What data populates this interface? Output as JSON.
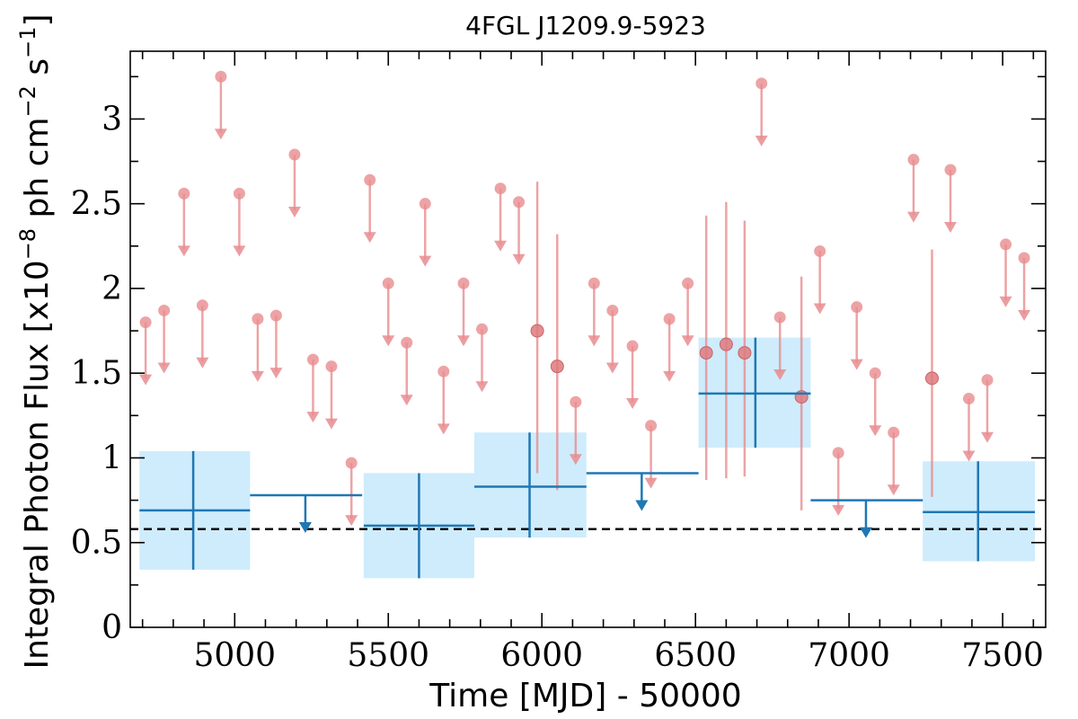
{
  "chart_data": {
    "type": "scatter",
    "title": "4FGL J1209.9-5923",
    "xlabel": "Time [MJD] - 50000",
    "ylabel_main": "Integral Photon Flux [x10",
    "ylabel_exp1": "−8",
    "ylabel_mid": " ph cm",
    "ylabel_exp2": "−2",
    "ylabel_mid2": " s",
    "ylabel_exp3": "−1",
    "ylabel_end": "]",
    "xlim": [
      4660,
      7640
    ],
    "ylim": [
      0,
      3.4
    ],
    "x_ticks": [
      5000,
      5500,
      6000,
      6500,
      7000,
      7500
    ],
    "x_tick_labels": [
      "5000",
      "5500",
      "6000",
      "6500",
      "7000",
      "7500"
    ],
    "x_minor_step": 100,
    "y_ticks": [
      0,
      0.5,
      1,
      1.5,
      2,
      2.5,
      3
    ],
    "y_tick_labels": [
      "0",
      "0.5",
      "1",
      "1.5",
      "2",
      "2.5",
      "3"
    ],
    "y_minor_step": 0.25,
    "baseline": {
      "value": 0.58,
      "style": "dashed",
      "color": "#000000"
    },
    "colors": {
      "fine": "#e88c8f",
      "coarse": "#1f77b4",
      "coarse_band": "#a6dcfa"
    },
    "series": [
      {
        "bins": "fine-upper-limits",
        "points": [
          {
            "x": 4710,
            "y": 1.8
          },
          {
            "x": 4770,
            "y": 1.87
          },
          {
            "x": 4835,
            "y": 2.56
          },
          {
            "x": 4895,
            "y": 1.9
          },
          {
            "x": 4955,
            "y": 3.25
          },
          {
            "x": 5015,
            "y": 2.56
          },
          {
            "x": 5075,
            "y": 1.82
          },
          {
            "x": 5135,
            "y": 1.84
          },
          {
            "x": 5195,
            "y": 2.79
          },
          {
            "x": 5255,
            "y": 1.58
          },
          {
            "x": 5315,
            "y": 1.54
          },
          {
            "x": 5380,
            "y": 0.97
          },
          {
            "x": 5440,
            "y": 2.64
          },
          {
            "x": 5500,
            "y": 2.03
          },
          {
            "x": 5560,
            "y": 1.68
          },
          {
            "x": 5620,
            "y": 2.5
          },
          {
            "x": 5680,
            "y": 1.51
          },
          {
            "x": 5745,
            "y": 2.03
          },
          {
            "x": 5805,
            "y": 1.76
          },
          {
            "x": 5865,
            "y": 2.59
          },
          {
            "x": 5925,
            "y": 2.51
          },
          {
            "x": 6110,
            "y": 1.33
          },
          {
            "x": 6170,
            "y": 2.03
          },
          {
            "x": 6230,
            "y": 1.87
          },
          {
            "x": 6295,
            "y": 1.66
          },
          {
            "x": 6355,
            "y": 1.19
          },
          {
            "x": 6415,
            "y": 1.82
          },
          {
            "x": 6475,
            "y": 2.03
          },
          {
            "x": 6715,
            "y": 3.21
          },
          {
            "x": 6775,
            "y": 1.83
          },
          {
            "x": 6905,
            "y": 2.22
          },
          {
            "x": 6965,
            "y": 1.03
          },
          {
            "x": 7025,
            "y": 1.89
          },
          {
            "x": 7085,
            "y": 1.5
          },
          {
            "x": 7145,
            "y": 1.15
          },
          {
            "x": 7210,
            "y": 2.76
          },
          {
            "x": 7330,
            "y": 2.7
          },
          {
            "x": 7390,
            "y": 1.35
          },
          {
            "x": 7450,
            "y": 1.46
          },
          {
            "x": 7510,
            "y": 2.26
          },
          {
            "x": 7570,
            "y": 2.18
          }
        ]
      },
      {
        "bins": "fine-detections",
        "points": [
          {
            "x": 5985,
            "y": 1.75,
            "ylow": 0.91,
            "yhigh": 2.63
          },
          {
            "x": 6050,
            "y": 1.54,
            "ylow": 0.81,
            "yhigh": 2.32
          },
          {
            "x": 6535,
            "y": 1.62,
            "ylow": 0.87,
            "yhigh": 2.43
          },
          {
            "x": 6600,
            "y": 1.67,
            "ylow": 0.88,
            "yhigh": 2.51
          },
          {
            "x": 6660,
            "y": 1.62,
            "ylow": 0.89,
            "yhigh": 2.4
          },
          {
            "x": 6845,
            "y": 1.36,
            "ylow": 0.69,
            "yhigh": 2.07
          },
          {
            "x": 7270,
            "y": 1.47,
            "ylow": 0.77,
            "yhigh": 2.23
          }
        ]
      },
      {
        "bins": "coarse-detections",
        "points": [
          {
            "x": 4865,
            "xlow": 4690,
            "xhigh": 5050,
            "y": 0.69,
            "ylow": 0.34,
            "yhigh": 1.04
          },
          {
            "x": 5600,
            "xlow": 5420,
            "xhigh": 5780,
            "y": 0.6,
            "ylow": 0.29,
            "yhigh": 0.91
          },
          {
            "x": 5960,
            "xlow": 5780,
            "xhigh": 6145,
            "y": 0.83,
            "ylow": 0.53,
            "yhigh": 1.15
          },
          {
            "x": 6695,
            "xlow": 6510,
            "xhigh": 6875,
            "y": 1.38,
            "ylow": 1.06,
            "yhigh": 1.71
          },
          {
            "x": 7420,
            "xlow": 7240,
            "xhigh": 7605,
            "y": 0.68,
            "ylow": 0.39,
            "yhigh": 0.98
          }
        ]
      },
      {
        "bins": "coarse-upper-limits",
        "points": [
          {
            "x": 5230,
            "xlow": 5050,
            "xhigh": 5415,
            "y": 0.78
          },
          {
            "x": 6325,
            "xlow": 6145,
            "xhigh": 6510,
            "y": 0.91
          },
          {
            "x": 7055,
            "xlow": 6875,
            "xhigh": 7240,
            "y": 0.75
          }
        ]
      }
    ]
  }
}
